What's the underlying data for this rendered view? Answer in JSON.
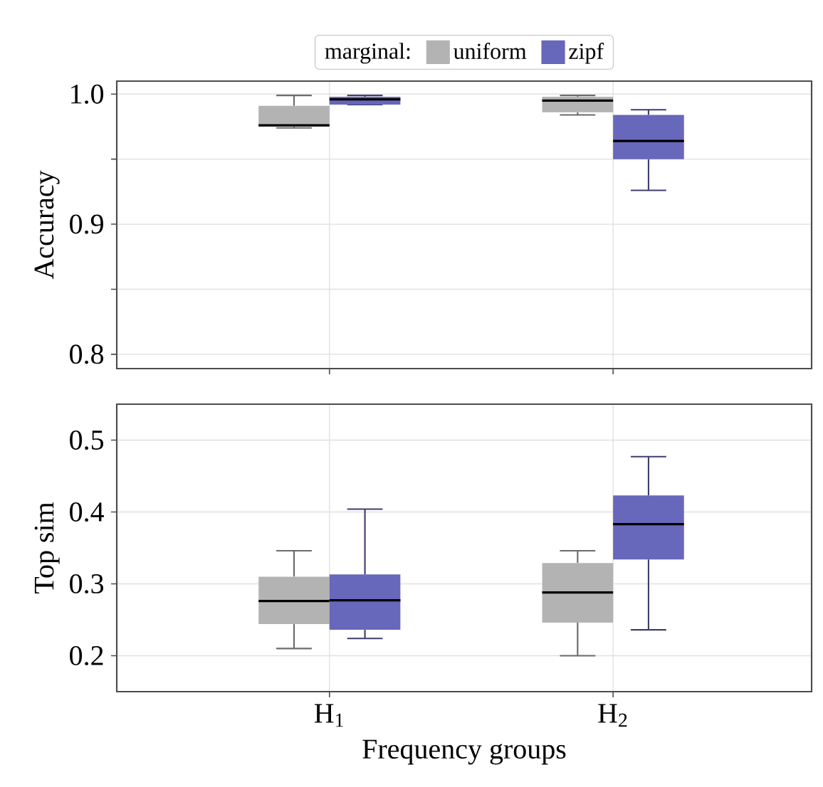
{
  "chart_data": [
    {
      "type": "box",
      "ylabel": "Accuracy",
      "legend_title": "marginal:",
      "legend": "top",
      "grid": true,
      "tick_labels": "y",
      "categories": [
        null,
        null
      ],
      "ylim": [
        0.789,
        1.01
      ],
      "yticks": [
        0.8,
        {
          "value": 0.85,
          "label": null
        },
        0.9,
        {
          "value": 0.95,
          "label": null
        },
        {
          "value": 1.0,
          "label": "1.0"
        }
      ],
      "series": [
        {
          "name": "uniform",
          "color": "#b3b3b3",
          "boxes": [
            {
              "low": 0.974,
              "q1": 0.975,
              "median": 0.976,
              "q3": 0.991,
              "high": 0.999
            },
            {
              "low": 0.984,
              "q1": 0.986,
              "median": 0.995,
              "q3": 0.998,
              "high": 0.999
            }
          ]
        },
        {
          "name": "zipf",
          "color": "#6767bb",
          "boxes": [
            {
              "low": 0.992,
              "q1": 0.992,
              "median": 0.996,
              "q3": 0.998,
              "high": 0.999
            },
            {
              "low": 0.926,
              "q1": 0.95,
              "median": 0.964,
              "q3": 0.984,
              "high": 0.988
            }
          ]
        }
      ]
    },
    {
      "type": "box",
      "ylabel": "Top sim",
      "xlabel": "Frequency groups",
      "grid": true,
      "categories": [
        "H$_{1}$",
        "H$_{2}$"
      ],
      "ylim": [
        0.15,
        0.55
      ],
      "yticks": [
        0.2,
        0.3,
        0.4,
        0.5
      ],
      "series": [
        {
          "color": "#b3b3b3",
          "boxes": [
            {
              "low": 0.21,
              "q1": 0.244,
              "median": 0.276,
              "q3": 0.31,
              "high": 0.346
            },
            {
              "low": 0.2,
              "q1": 0.246,
              "median": 0.288,
              "q3": 0.329,
              "high": 0.346
            }
          ]
        },
        {
          "color": "#6767bb",
          "boxes": [
            {
              "low": 0.224,
              "q1": 0.236,
              "median": 0.277,
              "q3": 0.313,
              "high": 0.404
            },
            {
              "low": 0.236,
              "q1": 0.334,
              "median": 0.383,
              "q3": 0.423,
              "high": 0.477
            }
          ]
        }
      ]
    }
  ]
}
